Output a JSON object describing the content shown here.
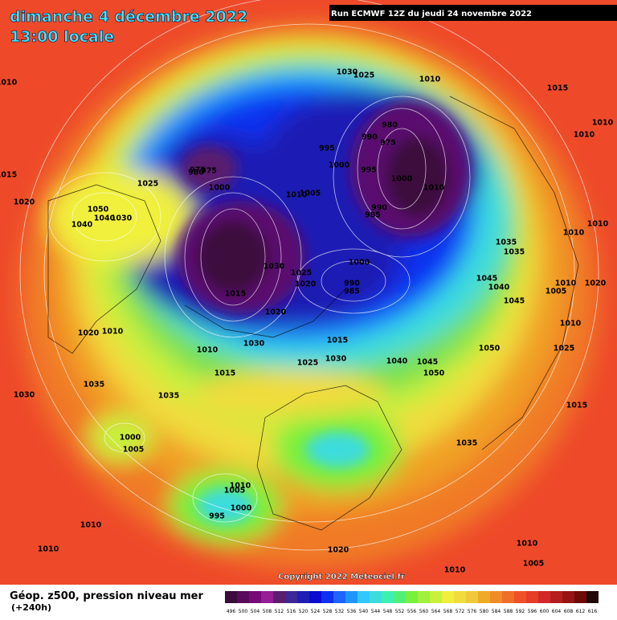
{
  "header": {
    "title": "dimanche 4 décembre 2022",
    "subtitle": "13:00 locale",
    "run": "Run ECMWF 12Z du jeudi 24 novembre 2022",
    "copyright": "Copyright 2022 Meteociel.fr"
  },
  "legend": {
    "title": "Géop. z500, pression niveau mer",
    "lead": "(+240h)",
    "scale": [
      496,
      500,
      504,
      508,
      512,
      516,
      520,
      524,
      528,
      532,
      536,
      540,
      544,
      548,
      552,
      556,
      560,
      564,
      568,
      572,
      576,
      580,
      584,
      588,
      592,
      596,
      600,
      604,
      608,
      612,
      616
    ],
    "colors": [
      "#3c0a3c",
      "#5a0a5a",
      "#780a78",
      "#961e96",
      "#5a1e6e",
      "#3c2896",
      "#1e1eb4",
      "#0a0ad2",
      "#0a32f0",
      "#1e64ff",
      "#1e96ff",
      "#32c8ff",
      "#3cdcdc",
      "#3cf0b4",
      "#50f078",
      "#78f03c",
      "#a0f03c",
      "#c8f03c",
      "#f0f03c",
      "#f0dc3c",
      "#f0c83c",
      "#f0aa28",
      "#f08c28",
      "#f06e28",
      "#f05028",
      "#e63c28",
      "#d22828",
      "#b41e1e",
      "#961414",
      "#6e0a0a",
      "#1e0a0a"
    ]
  },
  "isobar_labels": [
    1010,
    1015,
    1020,
    1030,
    1025,
    1010,
    1015,
    1010,
    1010,
    980,
    975,
    995,
    990,
    975,
    1000,
    995,
    1000,
    1010,
    990,
    985,
    1025,
    980,
    975,
    1000,
    1010,
    1005,
    1050,
    1040,
    1030,
    1040,
    1035,
    1030,
    1015,
    1025,
    1020,
    1000,
    990,
    985,
    1020,
    1015,
    1010,
    1020,
    1010,
    1030,
    1025,
    1030,
    1015,
    1035,
    1040,
    1045,
    1050,
    1050,
    1045,
    1040,
    1045,
    1035,
    1035,
    1010,
    1010,
    1005,
    1010,
    1020,
    1010,
    1025,
    1015,
    1035,
    1030,
    1000,
    1005,
    1005,
    1010,
    995,
    1000,
    1010,
    1010,
    1020,
    1010,
    1005,
    1010
  ]
}
